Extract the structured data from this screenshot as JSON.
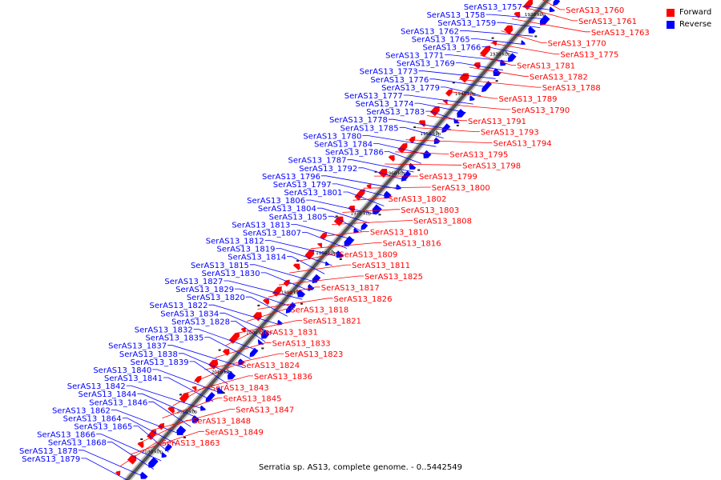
{
  "caption": "Serratia sp. AS13, complete genome. - 0..5442549",
  "legend": {
    "forward_label": "Forward",
    "reverse_label": "Reverse",
    "forward_color": "#ff0000",
    "reverse_color": "#0000ff"
  },
  "ticks": [
    "1920 kbp",
    "1930 kbp",
    "1940 kbp",
    "1950 kbp",
    "1960 kbp",
    "1970 kbp",
    "1980 kbp",
    "1990 kbp",
    "2000 kbp",
    "2010 kbp",
    "2020 kbp",
    "2030 kbp"
  ],
  "reverse_labels": [
    "SerAS13_1757",
    "SerAS13_1758",
    "SerAS13_1759",
    "SerAS13_1762",
    "SerAS13_1765",
    "SerAS13_1766",
    "SerAS13_1771",
    "SerAS13_1769",
    "SerAS13_1773",
    "SerAS13_1776",
    "SerAS13_1779",
    "SerAS13_1777",
    "SerAS13_1774",
    "SerAS13_1783",
    "SerAS13_1778",
    "SerAS13_1785",
    "SerAS13_1780",
    "SerAS13_1784",
    "SerAS13_1786",
    "SerAS13_1787",
    "SerAS13_1792",
    "SerAS13_1796",
    "SerAS13_1797",
    "SerAS13_1801",
    "SerAS13_1806",
    "SerAS13_1804",
    "SerAS13_1805",
    "SerAS13_1813",
    "SerAS13_1807",
    "SerAS13_1812",
    "SerAS13_1819",
    "SerAS13_1814",
    "SerAS13_1815",
    "SerAS13_1830",
    "SerAS13_1827",
    "SerAS13_1829",
    "SerAS13_1820",
    "SerAS13_1822",
    "SerAS13_1834",
    "SerAS13_1828",
    "SerAS13_1832",
    "SerAS13_1835",
    "SerAS13_1837",
    "SerAS13_1838",
    "SerAS13_1839",
    "SerAS13_1840",
    "SerAS13_1841",
    "SerAS13_1842",
    "SerAS13_1844",
    "SerAS13_1846",
    "SerAS13_1862",
    "SerAS13_1864",
    "SerAS13_1865",
    "SerAS13_1866",
    "SerAS13_1868",
    "SerAS13_1878",
    "SerAS13_1879"
  ],
  "forward_labels": [
    "SerAS13_1760",
    "SerAS13_1761",
    "SerAS13_1763",
    "SerAS13_1770",
    "SerAS13_1775",
    "SerAS13_1781",
    "SerAS13_1782",
    "SerAS13_1788",
    "SerAS13_1789",
    "SerAS13_1790",
    "SerAS13_1791",
    "SerAS13_1793",
    "SerAS13_1794",
    "SerAS13_1795",
    "SerAS13_1798",
    "SerAS13_1799",
    "SerAS13_1800",
    "SerAS13_1802",
    "SerAS13_1803",
    "SerAS13_1808",
    "SerAS13_1810",
    "SerAS13_1816",
    "SerAS13_1809",
    "SerAS13_1811",
    "SerAS13_1825",
    "SerAS13_1817",
    "SerAS13_1826",
    "SerAS13_1818",
    "SerAS13_1821",
    "SerAS13_1831",
    "SerAS13_1833",
    "SerAS13_1823",
    "SerAS13_1824",
    "SerAS13_1836",
    "SerAS13_1843",
    "SerAS13_1845",
    "SerAS13_1847",
    "SerAS13_1848",
    "SerAS13_1849",
    "SerAS13_1863"
  ]
}
